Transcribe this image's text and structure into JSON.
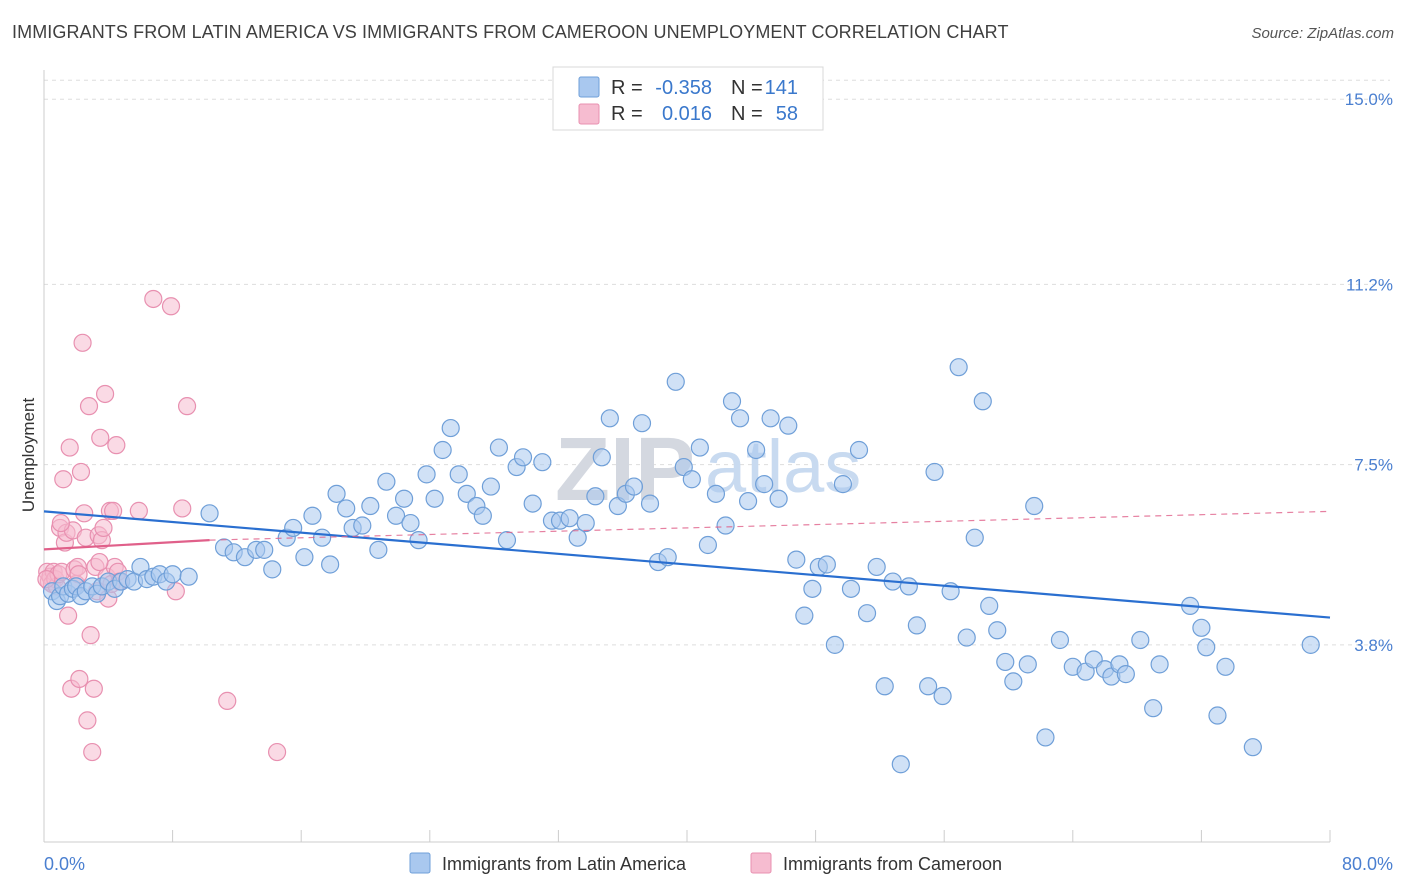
{
  "title": "IMMIGRANTS FROM LATIN AMERICA VS IMMIGRANTS FROM CAMEROON UNEMPLOYMENT CORRELATION CHART",
  "source": "Source: ZipAtlas.com",
  "watermark": {
    "zip": "ZIP",
    "atlas": "atlas"
  },
  "colors": {
    "blue_fill": "#a9c8ef",
    "blue_stroke": "#6f9fd8",
    "blue_line": "#2a6fd0",
    "pink_fill": "#f6bcd0",
    "pink_stroke": "#e890b0",
    "pink_line": "#e0608a",
    "axis_text": "#4a7fd0",
    "grid": "#dddddd"
  },
  "legend": {
    "rows": [
      {
        "r_label": "R =",
        "r_value": "-0.358",
        "n_label": "N =",
        "n_value": "141"
      },
      {
        "r_label": "R =",
        "r_value": "0.016",
        "n_label": "N =",
        "n_value": "58"
      }
    ]
  },
  "bottom_legend": {
    "series1": "Immigrants from Latin America",
    "series2": "Immigrants from Cameroon"
  },
  "chart_data": {
    "type": "scatter",
    "title": "IMMIGRANTS FROM LATIN AMERICA VS IMMIGRANTS FROM CAMEROON UNEMPLOYMENT CORRELATION CHART",
    "xlabel": "",
    "ylabel": "Unemployment",
    "xlim": [
      0,
      80
    ],
    "ylim": [
      0,
      15.6
    ],
    "x_tick_labels": {
      "left": "0.0%",
      "right": "80.0%"
    },
    "y_ticks": [
      {
        "value": 3.8,
        "label": "3.8%"
      },
      {
        "value": 7.5,
        "label": "7.5%"
      },
      {
        "value": 11.2,
        "label": "11.2%"
      },
      {
        "value": 15.0,
        "label": "15.0%"
      }
    ],
    "series": [
      {
        "name": "Immigrants from Latin America",
        "r": -0.358,
        "n": 141,
        "trend": {
          "x": [
            0,
            80
          ],
          "y": [
            6.54,
            4.36
          ]
        },
        "points": [
          [
            0.5,
            4.9
          ],
          [
            0.8,
            4.7
          ],
          [
            1.0,
            4.8
          ],
          [
            1.2,
            5.0
          ],
          [
            1.5,
            4.85
          ],
          [
            1.8,
            4.95
          ],
          [
            2.0,
            5.0
          ],
          [
            2.3,
            4.8
          ],
          [
            2.6,
            4.9
          ],
          [
            3.0,
            5.0
          ],
          [
            3.3,
            4.85
          ],
          [
            3.6,
            5.0
          ],
          [
            4.0,
            5.1
          ],
          [
            4.4,
            4.95
          ],
          [
            4.8,
            5.1
          ],
          [
            5.2,
            5.15
          ],
          [
            5.6,
            5.1
          ],
          [
            6.0,
            5.4
          ],
          [
            6.4,
            5.15
          ],
          [
            6.8,
            5.2
          ],
          [
            7.2,
            5.25
          ],
          [
            7.6,
            5.1
          ],
          [
            8.0,
            5.25
          ],
          [
            9.0,
            5.2
          ],
          [
            10.3,
            6.5
          ],
          [
            11.2,
            5.8
          ],
          [
            11.8,
            5.7
          ],
          [
            12.5,
            5.6
          ],
          [
            13.2,
            5.75
          ],
          [
            13.7,
            5.75
          ],
          [
            14.2,
            5.35
          ],
          [
            15.1,
            6.0
          ],
          [
            15.5,
            6.2
          ],
          [
            16.2,
            5.6
          ],
          [
            16.7,
            6.45
          ],
          [
            17.3,
            6.0
          ],
          [
            17.8,
            5.45
          ],
          [
            18.2,
            6.9
          ],
          [
            18.8,
            6.6
          ],
          [
            19.2,
            6.2
          ],
          [
            19.8,
            6.25
          ],
          [
            20.3,
            6.65
          ],
          [
            20.8,
            5.75
          ],
          [
            21.3,
            7.15
          ],
          [
            21.9,
            6.45
          ],
          [
            22.4,
            6.8
          ],
          [
            22.8,
            6.3
          ],
          [
            23.3,
            5.95
          ],
          [
            23.8,
            7.3
          ],
          [
            24.3,
            6.8
          ],
          [
            24.8,
            7.8
          ],
          [
            25.3,
            8.25
          ],
          [
            25.8,
            7.3
          ],
          [
            26.3,
            6.9
          ],
          [
            26.9,
            6.65
          ],
          [
            27.3,
            6.45
          ],
          [
            27.8,
            7.05
          ],
          [
            28.3,
            7.85
          ],
          [
            28.8,
            5.95
          ],
          [
            29.4,
            7.45
          ],
          [
            29.8,
            7.65
          ],
          [
            30.4,
            6.7
          ],
          [
            31.0,
            7.55
          ],
          [
            31.6,
            6.35
          ],
          [
            32.1,
            6.35
          ],
          [
            32.7,
            6.4
          ],
          [
            33.2,
            6.0
          ],
          [
            33.7,
            6.3
          ],
          [
            34.3,
            6.85
          ],
          [
            34.7,
            7.65
          ],
          [
            35.2,
            8.45
          ],
          [
            35.7,
            6.65
          ],
          [
            36.2,
            6.9
          ],
          [
            36.7,
            7.05
          ],
          [
            37.2,
            8.35
          ],
          [
            37.7,
            6.7
          ],
          [
            38.2,
            5.5
          ],
          [
            38.8,
            5.6
          ],
          [
            39.3,
            9.2
          ],
          [
            39.8,
            7.45
          ],
          [
            40.3,
            7.2
          ],
          [
            40.8,
            7.85
          ],
          [
            41.3,
            5.85
          ],
          [
            41.8,
            6.9
          ],
          [
            42.4,
            6.25
          ],
          [
            42.8,
            8.8
          ],
          [
            43.3,
            8.45
          ],
          [
            43.8,
            6.75
          ],
          [
            44.3,
            7.8
          ],
          [
            44.8,
            7.1
          ],
          [
            45.2,
            8.45
          ],
          [
            45.7,
            6.8
          ],
          [
            46.3,
            8.3
          ],
          [
            46.8,
            5.55
          ],
          [
            47.3,
            4.4
          ],
          [
            47.8,
            4.95
          ],
          [
            48.2,
            5.4
          ],
          [
            48.7,
            5.45
          ],
          [
            49.2,
            3.8
          ],
          [
            49.7,
            7.1
          ],
          [
            50.2,
            4.95
          ],
          [
            50.7,
            7.8
          ],
          [
            51.2,
            4.45
          ],
          [
            51.8,
            5.4
          ],
          [
            52.3,
            2.95
          ],
          [
            52.8,
            5.1
          ],
          [
            53.3,
            1.35
          ],
          [
            53.8,
            5.0
          ],
          [
            54.3,
            4.2
          ],
          [
            55.0,
            2.95
          ],
          [
            55.4,
            7.35
          ],
          [
            55.9,
            2.75
          ],
          [
            56.4,
            4.9
          ],
          [
            56.9,
            9.5
          ],
          [
            57.4,
            3.95
          ],
          [
            57.9,
            6.0
          ],
          [
            58.4,
            8.8
          ],
          [
            58.8,
            4.6
          ],
          [
            59.3,
            4.1
          ],
          [
            59.8,
            3.45
          ],
          [
            60.3,
            3.05
          ],
          [
            61.2,
            3.4
          ],
          [
            61.6,
            6.65
          ],
          [
            62.3,
            1.9
          ],
          [
            63.2,
            3.9
          ],
          [
            64.0,
            3.35
          ],
          [
            64.8,
            3.25
          ],
          [
            65.3,
            3.5
          ],
          [
            66.0,
            3.3
          ],
          [
            66.4,
            3.15
          ],
          [
            66.9,
            3.4
          ],
          [
            67.3,
            3.2
          ],
          [
            68.2,
            3.9
          ],
          [
            69.4,
            3.4
          ],
          [
            69.0,
            2.5
          ],
          [
            71.3,
            4.6
          ],
          [
            72.0,
            4.15
          ],
          [
            72.3,
            3.75
          ],
          [
            73.0,
            2.35
          ],
          [
            73.5,
            3.35
          ],
          [
            75.2,
            1.7
          ],
          [
            78.8,
            3.8
          ]
        ]
      },
      {
        "name": "Immigrants from Cameroon",
        "r": 0.016,
        "n": 58,
        "trend": {
          "x": [
            0,
            10.3
          ],
          "y": [
            5.76,
            5.95
          ]
        },
        "trend_dashed": {
          "x": [
            10.3,
            80
          ],
          "y": [
            5.95,
            6.54
          ]
        },
        "points": [
          [
            0.2,
            5.3
          ],
          [
            0.3,
            5.1
          ],
          [
            0.4,
            5.2
          ],
          [
            0.5,
            5.05
          ],
          [
            0.6,
            5.3
          ],
          [
            0.7,
            5.15
          ],
          [
            0.8,
            5.0
          ],
          [
            0.9,
            5.25
          ],
          [
            1.0,
            6.2
          ],
          [
            1.1,
            5.3
          ],
          [
            1.2,
            7.2
          ],
          [
            1.3,
            5.9
          ],
          [
            1.4,
            6.1
          ],
          [
            1.5,
            4.4
          ],
          [
            1.6,
            7.85
          ],
          [
            1.7,
            2.9
          ],
          [
            1.8,
            6.15
          ],
          [
            1.9,
            5.35
          ],
          [
            2.0,
            5.05
          ],
          [
            2.1,
            5.4
          ],
          [
            2.2,
            3.1
          ],
          [
            2.3,
            7.35
          ],
          [
            2.4,
            10.0
          ],
          [
            2.5,
            6.5
          ],
          [
            2.6,
            6.0
          ],
          [
            2.7,
            2.25
          ],
          [
            2.8,
            8.7
          ],
          [
            2.9,
            4.0
          ],
          [
            3.0,
            1.6
          ],
          [
            3.1,
            2.9
          ],
          [
            3.2,
            5.4
          ],
          [
            3.3,
            4.9
          ],
          [
            3.4,
            6.05
          ],
          [
            3.5,
            8.05
          ],
          [
            3.6,
            5.95
          ],
          [
            3.7,
            6.2
          ],
          [
            3.8,
            8.95
          ],
          [
            3.9,
            5.2
          ],
          [
            4.0,
            4.75
          ],
          [
            4.1,
            6.55
          ],
          [
            4.2,
            5.05
          ],
          [
            4.3,
            6.55
          ],
          [
            4.4,
            5.4
          ],
          [
            4.5,
            7.9
          ],
          [
            4.6,
            5.3
          ],
          [
            4.7,
            5.1
          ],
          [
            5.9,
            6.55
          ],
          [
            6.8,
            10.9
          ],
          [
            7.9,
            10.75
          ],
          [
            8.2,
            4.9
          ],
          [
            8.6,
            6.6
          ],
          [
            8.9,
            8.7
          ],
          [
            11.4,
            2.65
          ],
          [
            14.5,
            1.6
          ],
          [
            0.15,
            5.15
          ],
          [
            1.05,
            6.3
          ],
          [
            2.15,
            5.25
          ],
          [
            3.45,
            5.5
          ]
        ]
      }
    ]
  }
}
